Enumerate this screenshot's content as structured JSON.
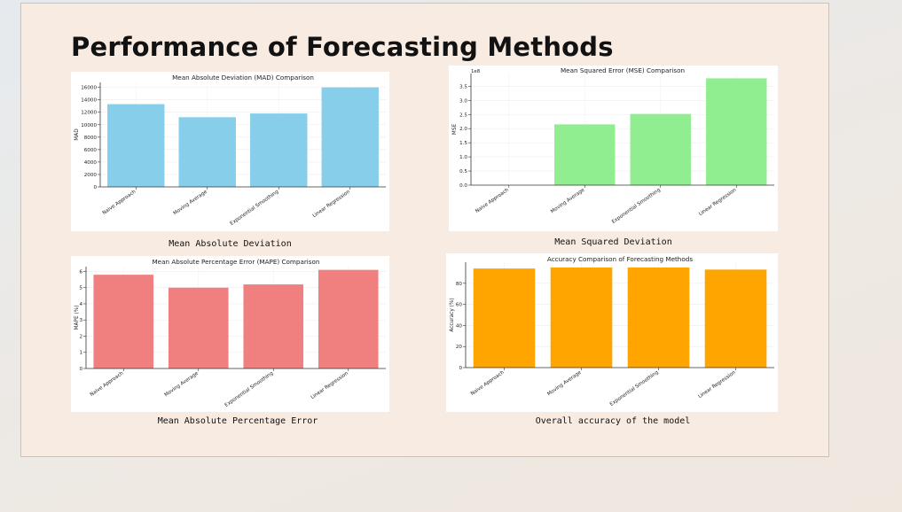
{
  "page": {
    "title": "Performance of Forecasting Methods"
  },
  "captions": [
    "Mean Absolute Deviation",
    "Mean Squared Deviation",
    "Mean Absolute Percentage Error",
    "Overall accuracy of the model"
  ],
  "colors": {
    "mad": "#87ceeb",
    "mse": "#90ee90",
    "mape": "#f08080",
    "accuracy": "#ffa500"
  },
  "chart_data": [
    {
      "type": "bar",
      "title": "Mean Absolute Deviation (MAD) Comparison",
      "xlabel": "",
      "ylabel": "MAD",
      "categories": [
        "Naive Approach",
        "Moving Average",
        "Exponential Smoothing",
        "Linear Regression"
      ],
      "values": [
        13300,
        11200,
        11800,
        16000
      ],
      "ylim": [
        0,
        16800
      ],
      "yticks": [
        0,
        2000,
        4000,
        6000,
        8000,
        10000,
        12000,
        14000,
        16000
      ],
      "ytick_labels": [
        "0",
        "2000",
        "4000",
        "6000",
        "8000",
        "10000",
        "12000",
        "14000",
        "16000"
      ],
      "color": "#87ceeb",
      "grid": true,
      "legend": "none"
    },
    {
      "type": "bar",
      "title": "Mean Squared Error (MSE) Comparison",
      "xlabel": "",
      "ylabel": "MSE",
      "scale_label": "1e8",
      "categories": [
        "Naive Approach",
        "Moving Average",
        "Exponential Smoothing",
        "Linear Regression"
      ],
      "values": [
        0,
        2.15,
        2.52,
        3.78
      ],
      "ylim": [
        0,
        3.95
      ],
      "yticks": [
        0,
        0.5,
        1.0,
        1.5,
        2.0,
        2.5,
        3.0,
        3.5
      ],
      "ytick_labels": [
        "0.0",
        "0.5",
        "1.0",
        "1.5",
        "2.0",
        "2.5",
        "3.0",
        "3.5"
      ],
      "color": "#90ee90",
      "grid": true,
      "legend": "none"
    },
    {
      "type": "bar",
      "title": "Mean Absolute Percentage Error (MAPE) Comparison",
      "xlabel": "",
      "ylabel": "MAPE (%)",
      "categories": [
        "Naive Approach",
        "Moving Average",
        "Exponential Smoothing",
        "Linear Regression"
      ],
      "values": [
        5.8,
        5.0,
        5.2,
        6.1
      ],
      "ylim": [
        0,
        6.3
      ],
      "yticks": [
        0,
        1,
        2,
        3,
        4,
        5,
        6
      ],
      "ytick_labels": [
        "0",
        "1",
        "2",
        "3",
        "4",
        "5",
        "6"
      ],
      "color": "#f08080",
      "grid": true,
      "legend": "none"
    },
    {
      "type": "bar",
      "title": "Accuracy Comparison of Forecasting Methods",
      "xlabel": "",
      "ylabel": "Accuracy (%)",
      "categories": [
        "Naive Approach",
        "Moving Average",
        "Exponential Smoothing",
        "Linear Regression"
      ],
      "values": [
        94,
        95,
        95,
        93
      ],
      "ylim": [
        0,
        100
      ],
      "yticks": [
        0,
        20,
        40,
        60,
        80
      ],
      "ytick_labels": [
        "0",
        "20",
        "40",
        "60",
        "80"
      ],
      "color": "#ffa500",
      "grid": true,
      "legend": "none"
    }
  ]
}
